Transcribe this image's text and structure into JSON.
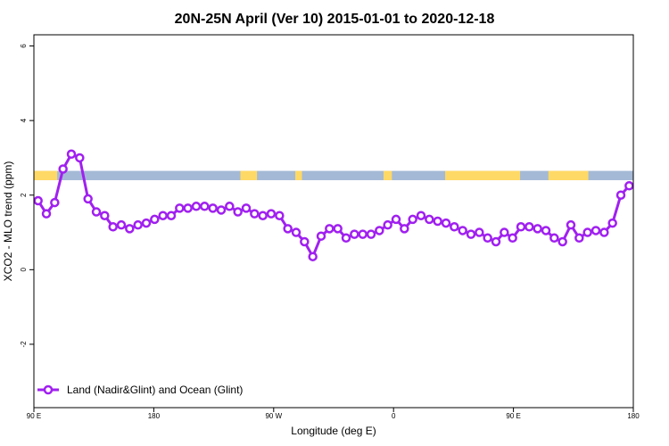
{
  "chart_data": {
    "type": "line",
    "title": "20N-25N April (Ver 10)   2015-01-01 to 2020-12-18",
    "xlabel": "Longitude (deg E)",
    "ylabel": "XCO2 - MLO trend (ppm)",
    "x_ticks": [
      "90 E",
      "180",
      "90 W",
      "0",
      "90 E",
      "180"
    ],
    "y_ticks": [
      "-2",
      "0",
      "2",
      "4",
      "6"
    ],
    "xlim": [
      90,
      450
    ],
    "ylim": [
      -3.7,
      6.3
    ],
    "grid": false,
    "legend_position": "bottom-left",
    "colors": {
      "series": "#a020f0",
      "land_band": "#ffd966",
      "ocean_band": "#a4b9d6"
    },
    "land_ocean_band": {
      "y_range": [
        2.4,
        2.65
      ],
      "land_segments": [
        [
          90,
          104
        ],
        [
          214,
          224
        ],
        [
          247,
          251
        ],
        [
          300,
          305
        ],
        [
          337,
          382
        ],
        [
          399,
          423
        ]
      ]
    },
    "series": [
      {
        "name": "Land (Nadir&Glint) and Ocean (Glint)",
        "x": [
          92.5,
          97.5,
          102.5,
          107.5,
          112.5,
          117.5,
          122.5,
          127.5,
          132.5,
          137.5,
          142.5,
          147.5,
          152.5,
          157.5,
          162.5,
          167.5,
          172.5,
          177.5,
          182.5,
          187.5,
          192.5,
          197.5,
          202.5,
          207.5,
          212.5,
          217.5,
          222.5,
          227.5,
          232.5,
          237.5,
          242.5,
          247.5,
          252.5,
          257.5,
          262.5,
          267.5,
          272.5,
          277.5,
          282.5,
          287.5,
          292.5,
          297.5,
          302.5,
          307.5,
          312.5,
          317.5,
          322.5,
          327.5,
          332.5,
          337.5,
          342.5,
          347.5,
          352.5,
          357.5,
          362.5,
          367.5,
          372.5,
          377.5,
          382.5,
          387.5,
          392.5,
          397.5,
          402.5,
          407.5,
          412.5,
          417.5,
          422.5,
          427.5,
          432.5,
          437.5,
          442.5,
          447.5
        ],
        "values": [
          1.85,
          1.5,
          1.8,
          2.7,
          3.1,
          3.0,
          1.9,
          1.55,
          1.45,
          1.15,
          1.2,
          1.1,
          1.2,
          1.25,
          1.35,
          1.45,
          1.45,
          1.65,
          1.65,
          1.7,
          1.7,
          1.65,
          1.6,
          1.7,
          1.55,
          1.65,
          1.5,
          1.45,
          1.5,
          1.45,
          1.1,
          1.0,
          0.75,
          0.35,
          0.9,
          1.1,
          1.1,
          0.85,
          0.95,
          0.95,
          0.95,
          1.05,
          1.2,
          1.35,
          1.1,
          1.35,
          1.45,
          1.35,
          1.3,
          1.25,
          1.15,
          1.05,
          0.95,
          1.0,
          0.85,
          0.75,
          1.0,
          0.85,
          1.15,
          1.15,
          1.1,
          1.05,
          0.85,
          0.75,
          1.2,
          0.85,
          1.0,
          1.05,
          1.0,
          1.25,
          2.0,
          2.25
        ]
      }
    ]
  }
}
